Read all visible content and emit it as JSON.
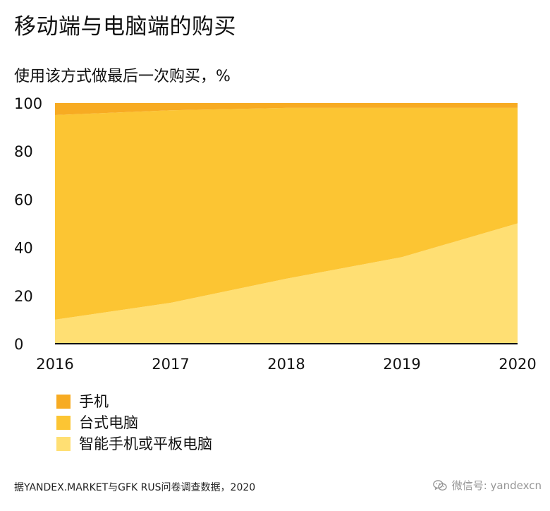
{
  "header": {
    "title": "移动端与电脑端的购买"
  },
  "chart_data": {
    "type": "area",
    "stacked": true,
    "title": "移动端与电脑端的购买",
    "subtitle": "使用该方式做最后一次购买，%",
    "x": [
      "2016",
      "2017",
      "2018",
      "2019",
      "2020"
    ],
    "ylim": [
      0,
      100
    ],
    "yticks": [
      0,
      20,
      40,
      60,
      80,
      100
    ],
    "grid": false,
    "legend_position": "bottom-left",
    "series": [
      {
        "name": "智能手机或平板电脑",
        "values": [
          10,
          17,
          27,
          36,
          50
        ],
        "color": "#ffdf73"
      },
      {
        "name": "台式电脑",
        "values": [
          85,
          80,
          71,
          62,
          48
        ],
        "color": "#fcc533"
      },
      {
        "name": "手机",
        "values": [
          5,
          3,
          2,
          2,
          2
        ],
        "color": "#f7ab22"
      }
    ],
    "legend_order": [
      "手机",
      "台式电脑",
      "智能手机或平板电脑"
    ]
  },
  "footer": {
    "source": "据YANDEX.MARKET与GFK RUS问卷调查数据，2020",
    "watermark": "微信号: yandexcn",
    "watermark_icon": "wechat-icon"
  },
  "colors": {
    "axis": "#111111",
    "text": "#111111",
    "watermark": "#8b8b8b"
  }
}
